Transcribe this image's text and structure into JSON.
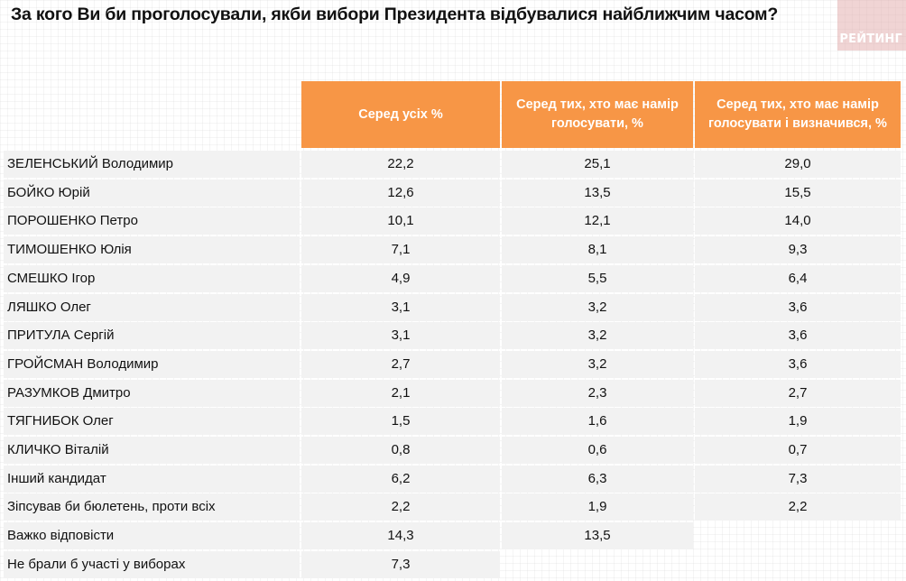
{
  "title": "За кого Ви би проголосували, якби вибори Президента відбувалися найближчим часом?",
  "logo": {
    "text": "РЕЙТИНГ",
    "color": "#e2aaaa"
  },
  "colors": {
    "header_bg": "#f79646",
    "row_bg": "#f2f2f2",
    "header_text": "#ffffff"
  },
  "table": {
    "headers": [
      "",
      "Серед усіх %",
      "Серед тих, хто має намір голосувати, %",
      "Серед тих, хто має намір голосувати і визначився, %"
    ],
    "rows": [
      {
        "label": "ЗЕЛЕНСЬКИЙ Володимир",
        "all": "22,2",
        "intend": "25,1",
        "decided": "29,0"
      },
      {
        "label": "БОЙКО Юрій",
        "all": "12,6",
        "intend": "13,5",
        "decided": "15,5"
      },
      {
        "label": "ПОРОШЕНКО Петро",
        "all": "10,1",
        "intend": "12,1",
        "decided": "14,0"
      },
      {
        "label": "ТИМОШЕНКО Юлія",
        "all": "7,1",
        "intend": "8,1",
        "decided": "9,3"
      },
      {
        "label": "СМЕШКО Ігор",
        "all": "4,9",
        "intend": "5,5",
        "decided": "6,4"
      },
      {
        "label": "ЛЯШКО Олег",
        "all": "3,1",
        "intend": "3,2",
        "decided": "3,6"
      },
      {
        "label": "ПРИТУЛА Сергій",
        "all": "3,1",
        "intend": "3,2",
        "decided": "3,6"
      },
      {
        "label": "ГРОЙСМАН Володимир",
        "all": "2,7",
        "intend": "3,2",
        "decided": "3,6"
      },
      {
        "label": "РАЗУМКОВ Дмитро",
        "all": "2,1",
        "intend": "2,3",
        "decided": "2,7"
      },
      {
        "label": "ТЯГНИБОК Олег",
        "all": "1,5",
        "intend": "1,6",
        "decided": "1,9"
      },
      {
        "label": "КЛИЧКО Віталій",
        "all": "0,8",
        "intend": "0,6",
        "decided": "0,7"
      },
      {
        "label": "Інший кандидат",
        "all": "6,2",
        "intend": "6,3",
        "decided": "7,3"
      },
      {
        "label": "Зіпсував би бюлетень, проти всіх",
        "all": "2,2",
        "intend": "1,9",
        "decided": "2,2"
      },
      {
        "label": "Важко відповісти",
        "all": "14,3",
        "intend": "13,5",
        "decided": null
      },
      {
        "label": "Не брали б участі у виборах",
        "all": "7,3",
        "intend": null,
        "decided": null
      }
    ]
  }
}
